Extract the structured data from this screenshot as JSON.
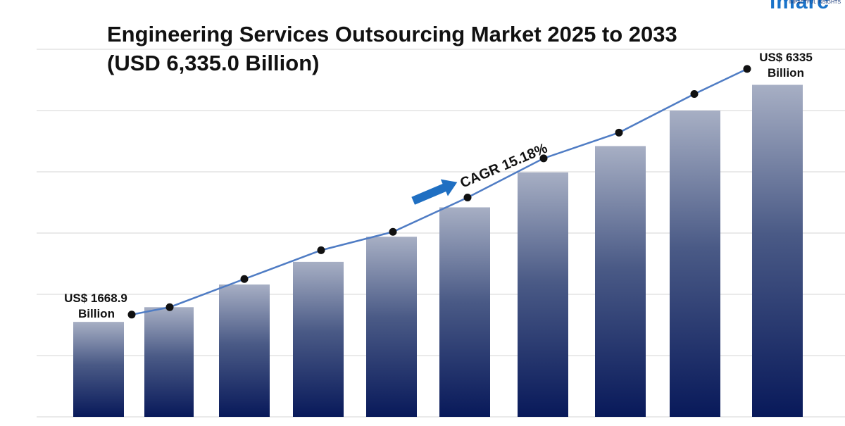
{
  "brand": {
    "logo": "imarc",
    "tag": "IMPACTFUL INSIGHTS"
  },
  "header": {
    "title_line1": "Engineering Services Outsourcing Market 2025 to 2033",
    "title_line2": "(USD 6,335.0 Billion)"
  },
  "chart_data": {
    "type": "bar",
    "title": "Engineering Services Outsourcing Market 2025 to 2033 (USD 6,335.0 Billion)",
    "categories": [
      "",
      "",
      "",
      "",
      "",
      "",
      "",
      "",
      "",
      ""
    ],
    "values": [
      1550,
      1790,
      2160,
      2530,
      2940,
      3420,
      3990,
      4420,
      5000,
      5420
    ],
    "trend_values": [
      1668.9,
      1790,
      2250,
      2720,
      3020,
      3580,
      4220,
      4640,
      5270,
      5680
    ],
    "ylim": [
      0,
      6000
    ],
    "grid": true,
    "gridlines": [
      0,
      1000,
      2000,
      3000,
      4000,
      5000,
      6000
    ],
    "bar_color_top": "#a7afc4",
    "bar_color_bottom": "#08195a",
    "line_color": "#4f7cc4",
    "marker_color": "#111111",
    "arrow_color": "#1f6fc2",
    "annotations": {
      "start_label_line1": "US$ 1668.9",
      "start_label_line2": "Billion",
      "end_label_line1": "US$ 6335",
      "end_label_line2": "Billion",
      "cagr": "CAGR 15.18%"
    }
  }
}
